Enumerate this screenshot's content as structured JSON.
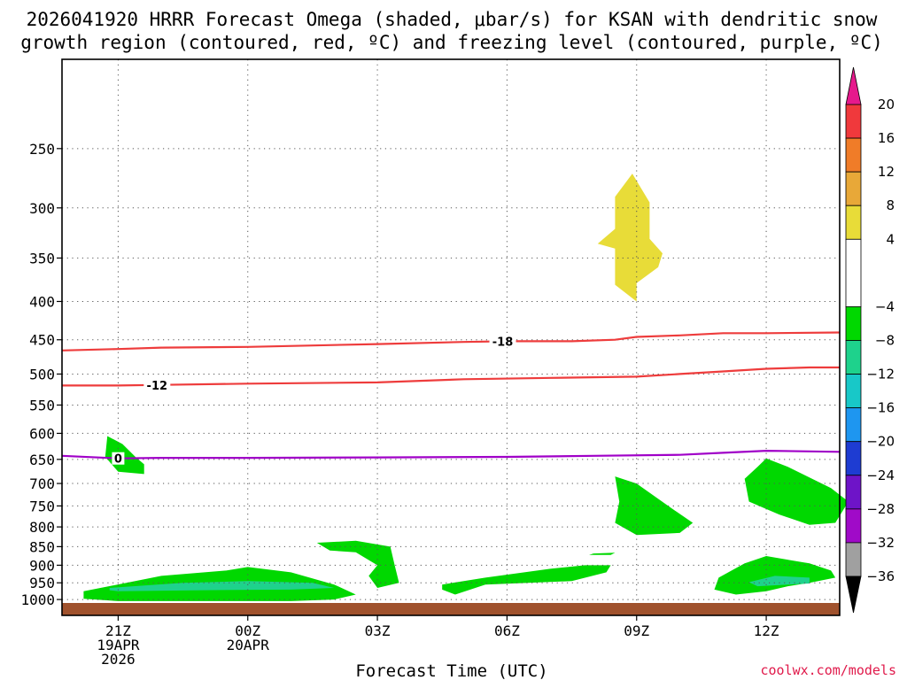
{
  "chart_data": {
    "type": "time-height",
    "title_line1": "2026041920 HRRR Forecast Omega (shaded, μbar/s) for KSAN with dendritic snow",
    "title_line2": "growth region (contoured, red, ºC) and freezing level (contoured, purple, ºC)",
    "xlabel": "Forecast Time (UTC)",
    "credit": "coolwx.com/models",
    "xlim": [
      -1.3,
      16.7
    ],
    "ylim": [
      1050,
      190
    ],
    "x_ticks": [
      {
        "x": 0,
        "lines": [
          "21Z",
          "19APR",
          "2026"
        ]
      },
      {
        "x": 3,
        "lines": [
          "00Z",
          "20APR"
        ]
      },
      {
        "x": 6,
        "lines": [
          "03Z"
        ]
      },
      {
        "x": 9,
        "lines": [
          "06Z"
        ]
      },
      {
        "x": 12,
        "lines": [
          "09Z"
        ]
      },
      {
        "x": 15,
        "lines": [
          "12Z"
        ]
      }
    ],
    "y_ticks": [
      250,
      300,
      350,
      400,
      450,
      500,
      550,
      600,
      650,
      700,
      750,
      800,
      850,
      900,
      950,
      1000
    ],
    "colorbar": {
      "levels": [
        20,
        16,
        12,
        8,
        4,
        -4,
        -8,
        -12,
        -16,
        -20,
        -24,
        -28,
        -32,
        -36
      ],
      "bands": [
        {
          "low": 16,
          "high": 20,
          "color": "#f0393c"
        },
        {
          "low": 12,
          "high": 16,
          "color": "#f07c28"
        },
        {
          "low": 8,
          "high": 12,
          "color": "#e8a838"
        },
        {
          "low": 4,
          "high": 8,
          "color": "#e8dc38"
        },
        {
          "low": -4,
          "high": 4,
          "color": "#ffffff"
        },
        {
          "low": -8,
          "high": -4,
          "color": "#00d800"
        },
        {
          "low": -12,
          "high": -8,
          "color": "#1ed28c"
        },
        {
          "low": -16,
          "high": -12,
          "color": "#18c8c8"
        },
        {
          "low": -20,
          "high": -16,
          "color": "#1e96f0"
        },
        {
          "low": -24,
          "high": -20,
          "color": "#1e3cd2"
        },
        {
          "low": -28,
          "high": -24,
          "color": "#6e14c8"
        },
        {
          "low": -32,
          "high": -28,
          "color": "#a00ac8"
        },
        {
          "low": -36,
          "high": -32,
          "color": "#a0a0a0"
        }
      ],
      "top_arrow_color": "#e6198c",
      "bottom_arrow_color": "#000000"
    },
    "contours": [
      {
        "name": "dgz-minus18",
        "label": "-18",
        "color": "#ee3c3c",
        "label_x": 8.9,
        "points": [
          [
            -1.3,
            465
          ],
          [
            0,
            463
          ],
          [
            1,
            461
          ],
          [
            3,
            460
          ],
          [
            6,
            456
          ],
          [
            8,
            453
          ],
          [
            9,
            452
          ],
          [
            10.5,
            452
          ],
          [
            11.5,
            450
          ],
          [
            12,
            446
          ],
          [
            13,
            444
          ],
          [
            14,
            441
          ],
          [
            15,
            441
          ],
          [
            16.7,
            440
          ]
        ]
      },
      {
        "name": "dgz-minus12",
        "label": "-12",
        "color": "#ee3c3c",
        "label_x": 0.9,
        "points": [
          [
            -1.3,
            518
          ],
          [
            0,
            518
          ],
          [
            1,
            517
          ],
          [
            3,
            515
          ],
          [
            6,
            513
          ],
          [
            8,
            508
          ],
          [
            10,
            506
          ],
          [
            12,
            504
          ],
          [
            13,
            500
          ],
          [
            14,
            496
          ],
          [
            15,
            492
          ],
          [
            16,
            490
          ],
          [
            16.7,
            490
          ]
        ]
      },
      {
        "name": "freezing-level",
        "label": "0",
        "color": "#a000c8",
        "label_x": 0,
        "points": [
          [
            -1.3,
            643
          ],
          [
            0,
            648
          ],
          [
            1,
            647
          ],
          [
            3,
            647
          ],
          [
            6,
            646
          ],
          [
            9,
            645
          ],
          [
            11,
            643
          ],
          [
            13,
            641
          ],
          [
            14,
            637
          ],
          [
            15,
            633
          ],
          [
            16.7,
            635
          ]
        ]
      }
    ],
    "shaded_regions": [
      {
        "name": "omega-pos4-region",
        "color": "#e8dc38",
        "points": [
          [
            11.9,
            270
          ],
          [
            12.3,
            295
          ],
          [
            12.3,
            330
          ],
          [
            12.6,
            345
          ],
          [
            12.5,
            360
          ],
          [
            12.0,
            378
          ],
          [
            12.0,
            400
          ],
          [
            11.5,
            380
          ],
          [
            11.5,
            340
          ],
          [
            11.1,
            335
          ],
          [
            11.5,
            320
          ],
          [
            11.5,
            290
          ]
        ]
      },
      {
        "name": "omega-neg4-region-a",
        "color": "#00d800",
        "points": [
          [
            -0.25,
            605
          ],
          [
            0.1,
            620
          ],
          [
            0.4,
            645
          ],
          [
            0.6,
            660
          ],
          [
            0.6,
            680
          ],
          [
            0,
            675
          ],
          [
            -0.3,
            645
          ]
        ]
      },
      {
        "name": "omega-neg4-region-b",
        "color": "#00d800",
        "points": [
          [
            -0.8,
            975
          ],
          [
            1.0,
            930
          ],
          [
            2.5,
            915
          ],
          [
            3.0,
            905
          ],
          [
            4.0,
            920
          ],
          [
            5.0,
            955
          ],
          [
            5.5,
            985
          ],
          [
            5.0,
            1000
          ],
          [
            4.0,
            1005
          ],
          [
            2.0,
            1005
          ],
          [
            0,
            1005
          ],
          [
            -0.8,
            998
          ]
        ]
      },
      {
        "name": "omega-neg4-region-c",
        "color": "#00d800",
        "points": [
          [
            4.6,
            840
          ],
          [
            5.5,
            835
          ],
          [
            6.3,
            850
          ],
          [
            6.4,
            900
          ],
          [
            6.5,
            950
          ],
          [
            6.0,
            965
          ],
          [
            5.8,
            930
          ],
          [
            6.0,
            900
          ],
          [
            5.5,
            865
          ],
          [
            4.9,
            860
          ]
        ]
      },
      {
        "name": "omega-neg4-region-d",
        "color": "#00d800",
        "points": [
          [
            7.5,
            955
          ],
          [
            8.5,
            935
          ],
          [
            10.0,
            910
          ],
          [
            10.8,
            900
          ],
          [
            11.4,
            900
          ],
          [
            11.3,
            920
          ],
          [
            10.5,
            945
          ],
          [
            9.5,
            950
          ],
          [
            8.5,
            955
          ],
          [
            7.8,
            985
          ],
          [
            7.5,
            970
          ]
        ]
      },
      {
        "name": "omega-neg4-region-e",
        "color": "#00d800",
        "points": [
          [
            11.5,
            685
          ],
          [
            12.0,
            700
          ],
          [
            12.8,
            755
          ],
          [
            13.3,
            790
          ],
          [
            13.0,
            815
          ],
          [
            12.0,
            820
          ],
          [
            11.5,
            790
          ],
          [
            11.6,
            740
          ]
        ]
      },
      {
        "name": "omega-neg4-region-f",
        "color": "#00d800",
        "points": [
          [
            11.0,
            868
          ],
          [
            11.5,
            866
          ],
          [
            11.4,
            872
          ],
          [
            10.9,
            872
          ]
        ]
      },
      {
        "name": "omega-neg4-region-g",
        "color": "#00d800",
        "points": [
          [
            13.9,
            935
          ],
          [
            14.5,
            895
          ],
          [
            15.0,
            875
          ],
          [
            16.0,
            895
          ],
          [
            16.5,
            915
          ],
          [
            16.6,
            935
          ],
          [
            16.0,
            950
          ],
          [
            15.5,
            960
          ],
          [
            15.0,
            975
          ],
          [
            14.3,
            985
          ],
          [
            13.8,
            970
          ]
        ]
      },
      {
        "name": "omega-neg4-region-h",
        "color": "#00d800",
        "points": [
          [
            15.0,
            648
          ],
          [
            15.5,
            665
          ],
          [
            16.5,
            710
          ],
          [
            16.9,
            740
          ],
          [
            16.6,
            790
          ],
          [
            16.0,
            795
          ],
          [
            15.3,
            770
          ],
          [
            14.6,
            740
          ],
          [
            14.5,
            690
          ],
          [
            14.8,
            665
          ]
        ]
      },
      {
        "name": "omega-neg8-region-a",
        "color": "#1ed28c",
        "points": [
          [
            -0.2,
            965
          ],
          [
            1.5,
            950
          ],
          [
            3,
            945
          ],
          [
            4.5,
            950
          ],
          [
            5.0,
            965
          ],
          [
            4.0,
            970
          ],
          [
            2.0,
            972
          ],
          [
            0,
            975
          ],
          [
            -0.2,
            972
          ]
        ]
      },
      {
        "name": "omega-neg8-region-b",
        "color": "#1ed28c",
        "points": [
          [
            14.6,
            948
          ],
          [
            15.2,
            930
          ],
          [
            16.0,
            935
          ],
          [
            16.0,
            952
          ],
          [
            15.5,
            955
          ],
          [
            14.8,
            960
          ]
        ]
      }
    ]
  }
}
